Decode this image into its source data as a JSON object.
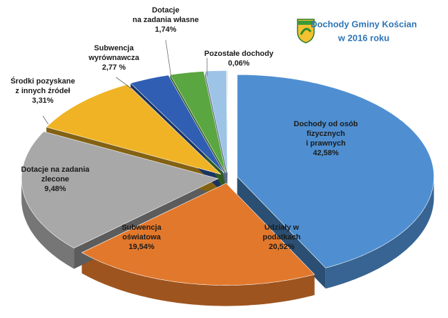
{
  "chart_data": {
    "type": "pie3d",
    "title": [
      "Dochody Gminy Kościan",
      "w 2016 roku"
    ],
    "categories": [
      [
        "Dochody od osób",
        "fizycznych",
        "i prawnych"
      ],
      [
        "Udziały w",
        "podatkach"
      ],
      [
        "Subwencja",
        "oświatowa"
      ],
      [
        "Dotacje na zadania",
        "zlecone"
      ],
      [
        "Środki pozyskane",
        "z innych źródeł"
      ],
      [
        "Subwencja",
        "wyrównawcza"
      ],
      [
        "Dotacje",
        "na zadania własne"
      ],
      [
        "Pozostałe dochody"
      ]
    ],
    "values": [
      42.58,
      20.52,
      19.54,
      9.48,
      3.31,
      2.77,
      1.74,
      0.06
    ],
    "value_labels": [
      "42,58%",
      "20,52%",
      "19,54%",
      "9,48%",
      "3,31%",
      "2,77 %",
      "1,74%",
      "0,06%"
    ],
    "colors": [
      "#4f8fd1",
      "#e2782c",
      "#a8a8a8",
      "#efb325",
      "#2f5eb3",
      "#5aa641",
      "#9dc3e6",
      "#f2a083"
    ]
  }
}
